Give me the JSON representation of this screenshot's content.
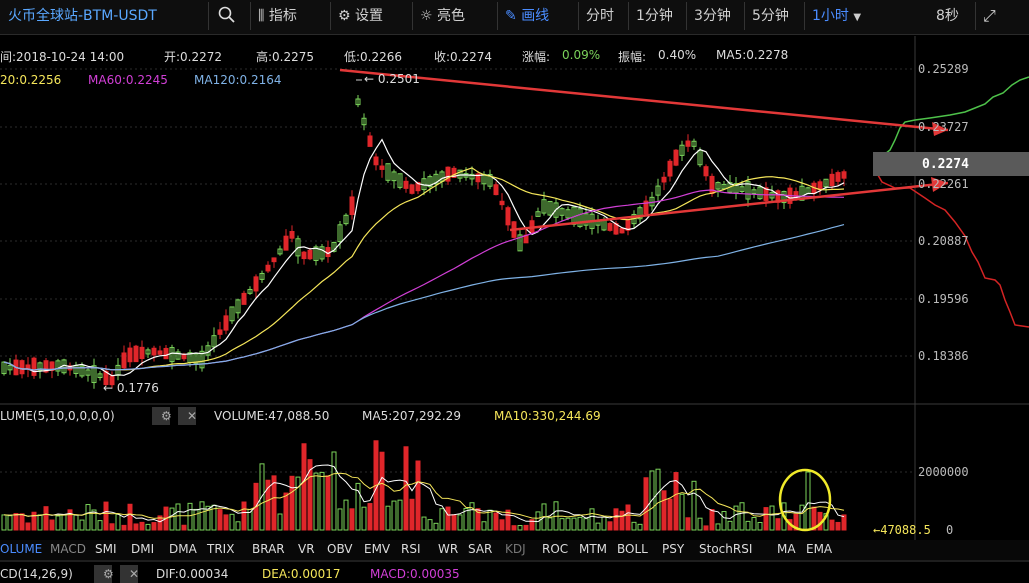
{
  "toolbar": {
    "title": "火币全球站-BTM-USDT",
    "indicators_label": "指标",
    "settings_label": "设置",
    "theme_label": "亮色",
    "draw_label": "画线",
    "time_label": "分时",
    "m1_label": "1分钟",
    "m3_label": "3分钟",
    "m5_label": "5分钟",
    "h1_label": "1小时",
    "refresh_label": "8秒"
  },
  "info": {
    "time": "间:2018-10-24 14:00",
    "open": "开:0.2272",
    "high": "高:0.2275",
    "low": "低:0.2266",
    "close": "收:0.2274",
    "change_label": "涨幅:",
    "change_value": "0.09%",
    "amp_label": "振幅:",
    "amp_value": "0.40%",
    "ma5": "MA5:0.2278"
  },
  "ma": {
    "ma20": "20:0.2256",
    "ma60": "MA60:0.2245",
    "ma120": "MA120:0.2164"
  },
  "annotations": {
    "high_marker": "← 0.2501",
    "low_marker": "← 0.1776"
  },
  "price_axis": {
    "ticks": [
      "0.25289",
      "0.23727",
      "0.22261",
      "0.20887",
      "0.19596",
      "0.18386"
    ],
    "current": "0.2274"
  },
  "volume": {
    "title": "LUME(5,10,0,0,0,0)",
    "value": "VOLUME:47,088.50",
    "ma5": "MA5:207,292.29",
    "ma10": "MA10:330,244.69",
    "tick_2m": "2000000",
    "tick_0": "0",
    "current": "←47088.5"
  },
  "indicator_tabs": [
    "OLUME",
    "MACD",
    "SMI",
    "DMI",
    "DMA",
    "TRIX",
    "BRAR",
    "VR",
    "OBV",
    "EMV",
    "RSI",
    "WR",
    "SAR",
    "KDJ",
    "ROC",
    "MTM",
    "BOLL",
    "PSY",
    "StochRSI",
    "MA",
    "EMA"
  ],
  "macd": {
    "title": "CD(14,26,9)",
    "dif": "DIF:0.00034",
    "dea": "DEA:0.00017",
    "macd": "MACD:0.00035"
  },
  "colors": {
    "up": "#7bd35a",
    "down": "#e0262a",
    "ma5": "#ffffff",
    "ma20": "#f5e65a",
    "ma60": "#d13fd6",
    "ma120": "#7fb2e6",
    "accent": "#4a8cff"
  }
}
